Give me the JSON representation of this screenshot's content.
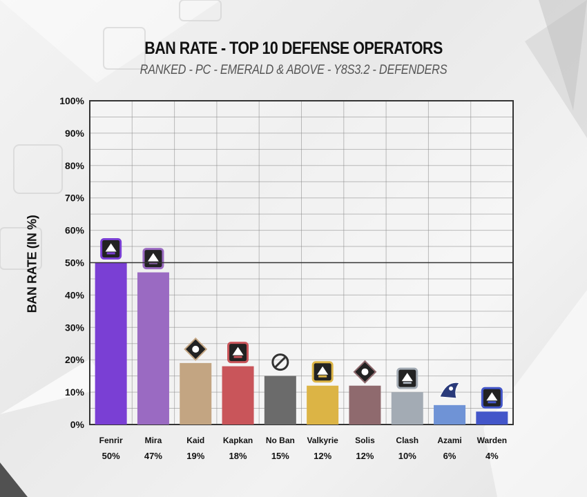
{
  "chart_data": {
    "type": "bar",
    "title": "BAN RATE - TOP 10 DEFENSE OPERATORS",
    "subtitle": "RANKED - PC - EMERALD & ABOVE - Y8S3.2 - DEFENDERS",
    "xlabel": "",
    "ylabel": "BAN RATE (IN %)",
    "ylim": [
      0,
      100
    ],
    "yticks": [
      "0%",
      "10%",
      "20%",
      "30%",
      "40%",
      "50%",
      "60%",
      "70%",
      "80%",
      "90%",
      "100%"
    ],
    "grid": true,
    "categories": [
      "Fenrir",
      "Mira",
      "Kaid",
      "Kapkan",
      "No Ban",
      "Valkyrie",
      "Solis",
      "Clash",
      "Azami",
      "Warden"
    ],
    "values": [
      50,
      47,
      19,
      18,
      15,
      12,
      12,
      10,
      6,
      4
    ],
    "value_labels": [
      "50%",
      "47%",
      "19%",
      "18%",
      "15%",
      "12%",
      "12%",
      "10%",
      "6%",
      "4%"
    ],
    "colors": [
      "#7a3fd4",
      "#9a6ac2",
      "#c3a582",
      "#c9555a",
      "#6b6b6b",
      "#dcb445",
      "#8f6a6e",
      "#a3abb4",
      "#6f93d6",
      "#4356c9"
    ],
    "icons": [
      "fenrir-icon",
      "mira-icon",
      "kaid-icon",
      "kapkan-icon",
      "no-ban-icon",
      "valkyrie-icon",
      "solis-icon",
      "clash-icon",
      "azami-icon",
      "warden-icon"
    ]
  }
}
